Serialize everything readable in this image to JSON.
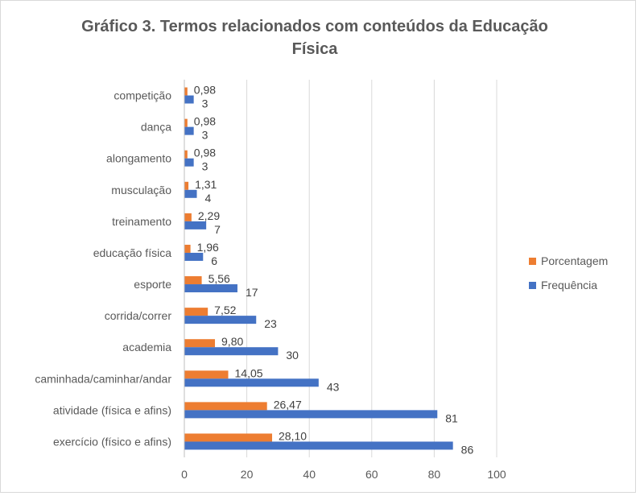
{
  "chart_data": {
    "type": "bar",
    "orientation": "horizontal",
    "title": "Gráfico 3. Termos relacionados com conteúdos da Educação Física",
    "categories": [
      "exercício (físico e afins)",
      "atividade (física e afins)",
      "caminhada/caminhar/andar",
      "academia",
      "corrida/correr",
      "esporte",
      "educação física",
      "treinamento",
      "musculação",
      "alongamento",
      "dança",
      "competição"
    ],
    "series": [
      {
        "name": "Porcentagem",
        "color": "#ed7d31",
        "values": [
          28.1,
          26.47,
          14.05,
          9.8,
          7.52,
          5.56,
          1.96,
          2.29,
          1.31,
          0.98,
          0.98,
          0.98
        ],
        "labels": [
          "28,10",
          "26,47",
          "14,05",
          "9,80",
          "7,52",
          "5,56",
          "1,96",
          "2,29",
          "1,31",
          "0,98",
          "0,98",
          "0,98"
        ]
      },
      {
        "name": "Frequência",
        "color": "#4472c4",
        "values": [
          86,
          81,
          43,
          30,
          23,
          17,
          6,
          7,
          4,
          3,
          3,
          3
        ],
        "labels": [
          "86",
          "81",
          "43",
          "30",
          "23",
          "17",
          "6",
          "7",
          "4",
          "3",
          "3",
          "3"
        ]
      }
    ],
    "xlim": [
      0,
      100
    ],
    "xticks": [
      "0",
      "20",
      "40",
      "60",
      "80",
      "100"
    ],
    "grid": true,
    "legend_position": "right"
  }
}
